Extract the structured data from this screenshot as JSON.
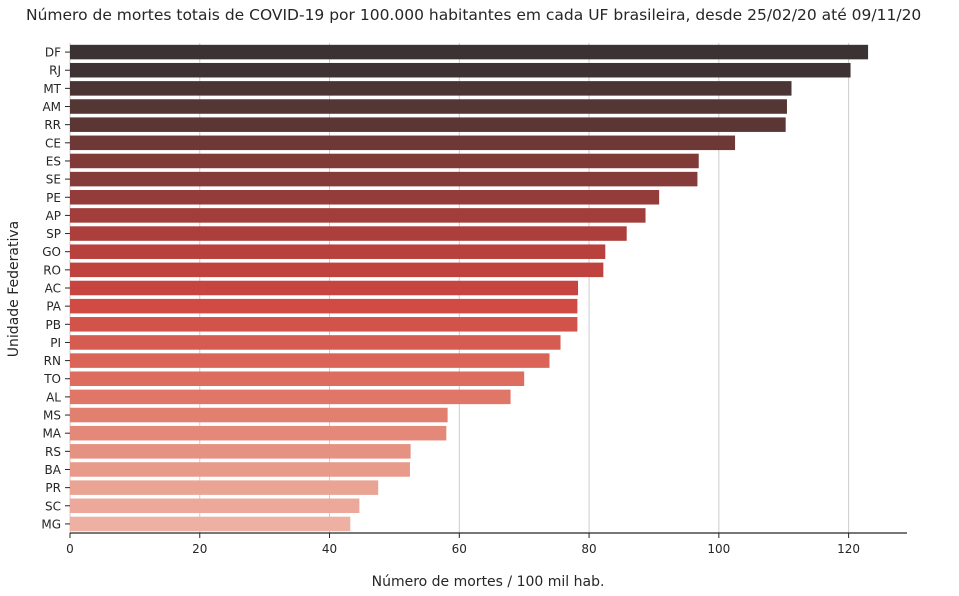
{
  "chart_data": {
    "type": "bar",
    "orientation": "horizontal",
    "title": "Número de mortes totais de COVID-19 por 100.000 habitantes em cada UF brasileira, desde 25/02/20 até 09/11/20",
    "xlabel": "Número de mortes / 100 mil hab.",
    "ylabel": "Unidade Federativa",
    "xlim": [
      0,
      129
    ],
    "xticks": [
      0,
      20,
      40,
      60,
      80,
      100,
      120
    ],
    "grid": "vertical",
    "categories": [
      "DF",
      "RJ",
      "MT",
      "AM",
      "RR",
      "CE",
      "ES",
      "SE",
      "PE",
      "AP",
      "SP",
      "GO",
      "RO",
      "AC",
      "PA",
      "PB",
      "PI",
      "RN",
      "TO",
      "AL",
      "MS",
      "MA",
      "RS",
      "BA",
      "PR",
      "SC",
      "MG"
    ],
    "values": [
      123.0,
      120.3,
      111.2,
      110.5,
      110.3,
      102.5,
      96.9,
      96.7,
      90.8,
      88.7,
      85.8,
      82.5,
      82.2,
      78.3,
      78.2,
      78.2,
      75.6,
      73.9,
      70.0,
      67.9,
      58.2,
      58.0,
      52.5,
      52.4,
      47.5,
      44.6,
      43.2
    ],
    "colors": [
      "#3a3233",
      "#3f3233",
      "#4b3534",
      "#543634",
      "#5b3635",
      "#6e3837",
      "#803a38",
      "#853b39",
      "#943c3a",
      "#a13e3b",
      "#ac3f3c",
      "#b8403d",
      "#c0423f",
      "#c84440",
      "#cf4b43",
      "#d2534a",
      "#d65b50",
      "#d96457",
      "#dc6d5f",
      "#df7667",
      "#e28070",
      "#e48979",
      "#e69282",
      "#e89b8b",
      "#eaa494",
      "#eca99b",
      "#eeb0a2"
    ]
  }
}
